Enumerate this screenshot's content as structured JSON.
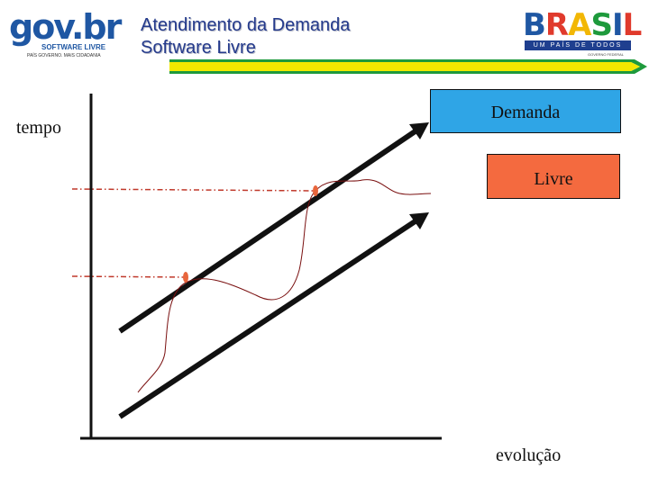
{
  "header": {
    "title_line1": "Atendimento da Demanda",
    "title_line2": "Software Livre"
  },
  "logos": {
    "gov": {
      "word": "gov.br",
      "subtitle": "SOFTWARE LIVRE",
      "slogan": "PAÍS GOVERNO. MAIS CIDADANIA"
    },
    "brasil": {
      "word": "BRASIL",
      "subtitle": "UM PAÍS DE TODOS",
      "tagline": "GOVERNO FEDERAL"
    }
  },
  "diagram": {
    "axis_y_label": "tempo",
    "axis_x_label": "evolução",
    "box_demanda": "Demanda",
    "box_livre": "Livre"
  },
  "colors": {
    "title": "#243a8c",
    "header_bar_yellow": "#f2e800",
    "header_bar_green": "#1e9a3c",
    "box_demanda_fill": "#2fa5e6",
    "box_livre_fill": "#f46a3f",
    "curve": "#7a1010",
    "guide_line": "#c0392b",
    "marker": "#e8663c"
  }
}
